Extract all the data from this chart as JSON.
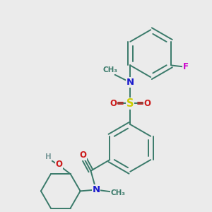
{
  "background_color": "#ebebeb",
  "bond_color": "#3a7a6a",
  "bond_width": 1.4,
  "atom_colors": {
    "C": "#3a7a6a",
    "N": "#1a1acc",
    "O": "#cc1a1a",
    "S": "#cccc00",
    "F": "#cc00cc",
    "H": "#7a9a9a"
  },
  "font_size": 8.5
}
